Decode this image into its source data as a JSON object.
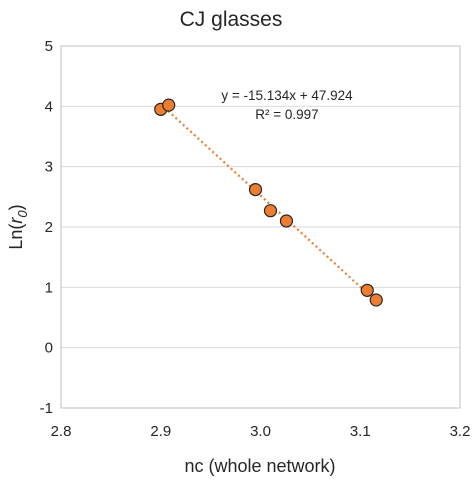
{
  "chart_data": {
    "type": "scatter",
    "title": "CJ glasses",
    "xlabel": "nc (whole network)",
    "ylabel_prefix": "Ln(",
    "ylabel_var": "r",
    "ylabel_sub": "0",
    "ylabel_suffix": ")",
    "xlim": [
      2.8,
      3.2
    ],
    "ylim": [
      -1,
      5
    ],
    "xticks": [
      "2.8",
      "2.9",
      "3.0",
      "3.1",
      "3.2"
    ],
    "yticks": [
      "-1",
      "0",
      "1",
      "2",
      "3",
      "4",
      "5"
    ],
    "grid": true,
    "points": [
      {
        "x": 2.9,
        "y": 3.95
      },
      {
        "x": 2.908,
        "y": 4.02
      },
      {
        "x": 2.995,
        "y": 2.62
      },
      {
        "x": 3.01,
        "y": 2.27
      },
      {
        "x": 3.026,
        "y": 2.1
      },
      {
        "x": 3.107,
        "y": 0.95
      },
      {
        "x": 3.116,
        "y": 0.79
      }
    ],
    "trendline": {
      "slope": -15.134,
      "intercept": 47.924,
      "x_range": [
        2.9,
        3.116
      ]
    },
    "equation": "y = -15.134x + 47.924",
    "r_squared": "R² = 0.997",
    "colors": {
      "point_fill": "#ED7D31",
      "trendline": "#ED7D31"
    }
  }
}
